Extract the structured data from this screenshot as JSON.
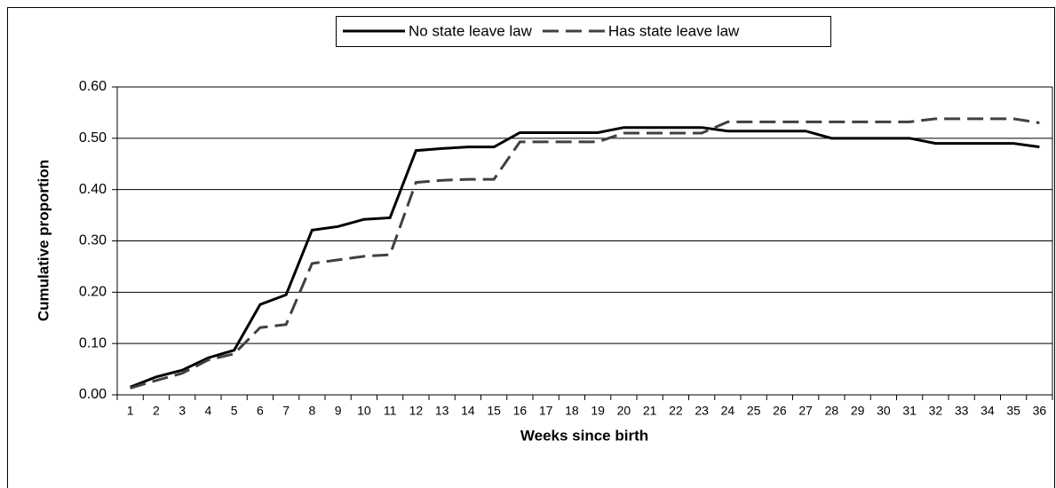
{
  "chart_data": {
    "type": "line",
    "xlabel": "Weeks since birth",
    "ylabel": "Cumulative proportion",
    "categories": [
      "1",
      "2",
      "3",
      "4",
      "5",
      "6",
      "7",
      "8",
      "9",
      "10",
      "11",
      "12",
      "13",
      "14",
      "15",
      "16",
      "17",
      "18",
      "19",
      "20",
      "21",
      "22",
      "23",
      "24",
      "25",
      "26",
      "27",
      "28",
      "29",
      "30",
      "31",
      "32",
      "33",
      "34",
      "35",
      "36"
    ],
    "series": [
      {
        "name": "No state leave law",
        "color": "#000000",
        "dash": false,
        "values": [
          0.015,
          0.035,
          0.048,
          0.072,
          0.087,
          0.176,
          0.195,
          0.321,
          0.328,
          0.342,
          0.345,
          0.476,
          0.48,
          0.483,
          0.483,
          0.511,
          0.511,
          0.511,
          0.511,
          0.521,
          0.521,
          0.521,
          0.521,
          0.514,
          0.514,
          0.514,
          0.514,
          0.5,
          0.5,
          0.5,
          0.5,
          0.49,
          0.49,
          0.49,
          0.49,
          0.483
        ]
      },
      {
        "name": "Has state leave law",
        "color": "#404040",
        "dash": true,
        "values": [
          0.013,
          0.028,
          0.042,
          0.068,
          0.08,
          0.131,
          0.137,
          0.256,
          0.263,
          0.27,
          0.273,
          0.414,
          0.418,
          0.42,
          0.42,
          0.493,
          0.493,
          0.493,
          0.493,
          0.51,
          0.51,
          0.51,
          0.51,
          0.532,
          0.532,
          0.532,
          0.532,
          0.532,
          0.532,
          0.532,
          0.532,
          0.538,
          0.538,
          0.538,
          0.538,
          0.53
        ]
      }
    ],
    "ylim": [
      0,
      0.6
    ],
    "yticks": [
      {
        "value": 0,
        "label": "0.00"
      },
      {
        "value": 0.1,
        "label": "0.10"
      },
      {
        "value": 0.2,
        "label": "0.20"
      },
      {
        "value": 0.3,
        "label": "0.30"
      },
      {
        "value": 0.4,
        "label": "0.40"
      },
      {
        "value": 0.5,
        "label": "0.50"
      },
      {
        "value": 0.6,
        "label": "0.60"
      }
    ],
    "grid": true,
    "legend": "top"
  }
}
